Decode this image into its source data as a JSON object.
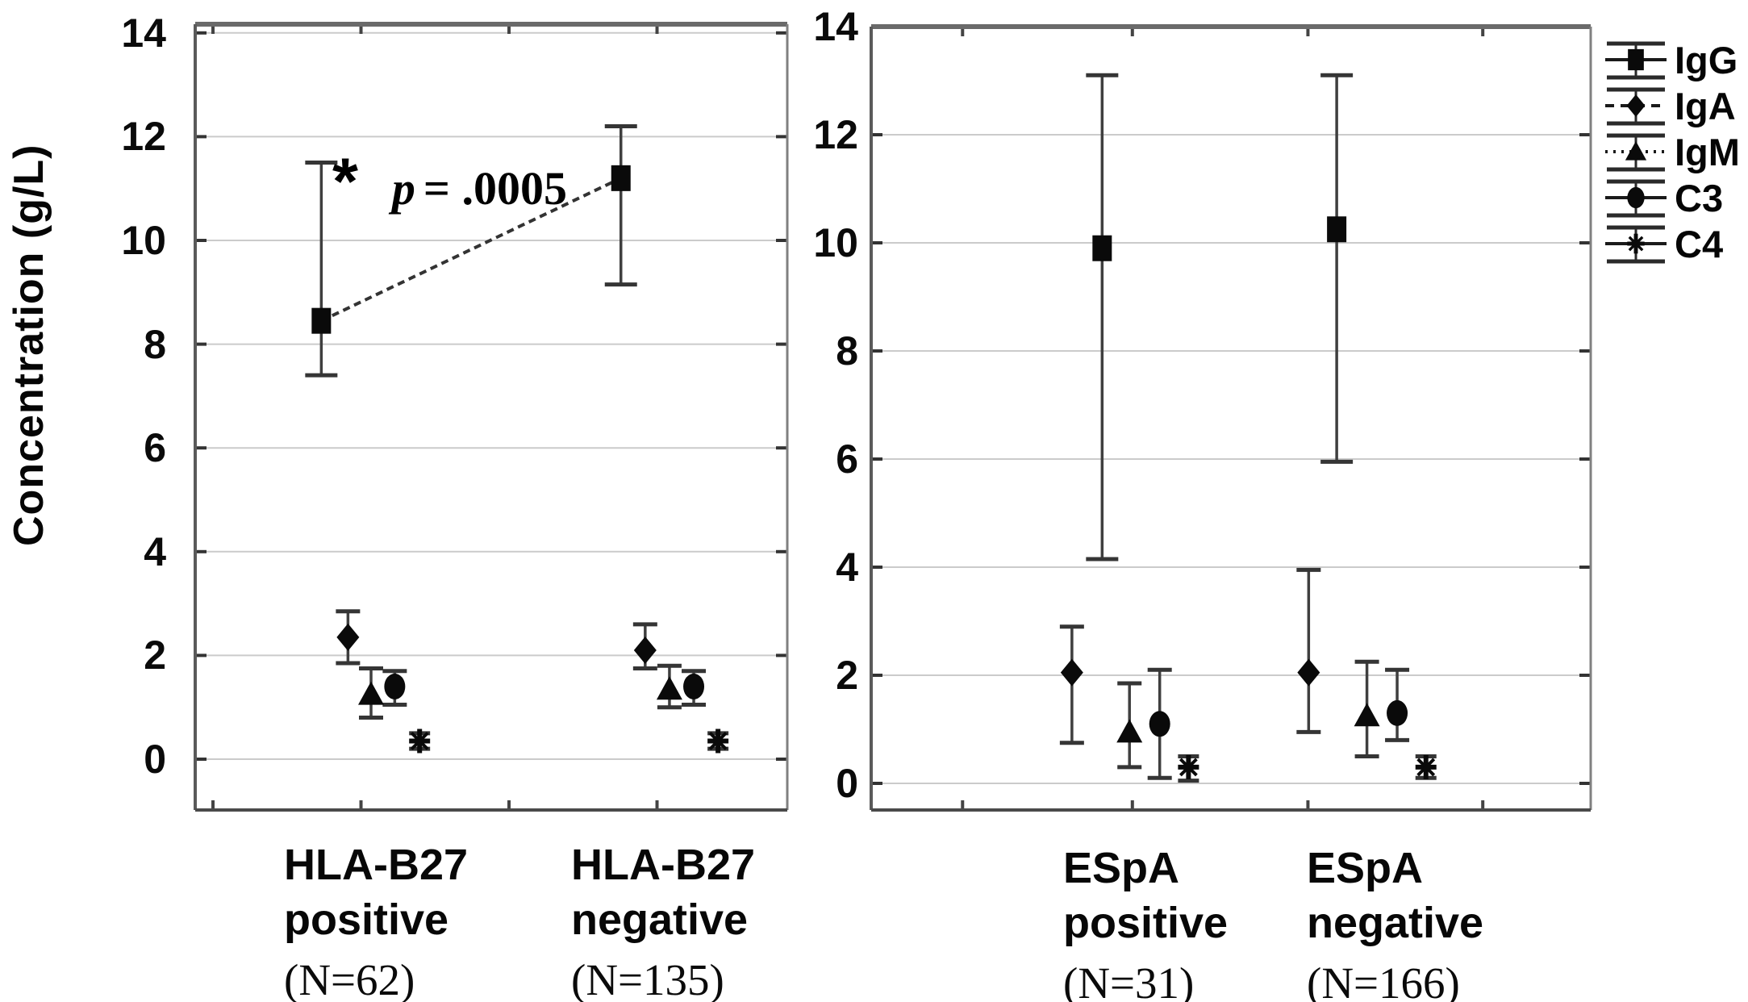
{
  "figure": {
    "background": "#ffffff",
    "ylabel": "Concentration (g/L)",
    "annotation": {
      "star": "*",
      "p_var": "p",
      "p_rest": "= .0005"
    }
  },
  "legend": {
    "items": [
      {
        "label": "IgG",
        "marker": "square",
        "line": "solid"
      },
      {
        "label": "IgA",
        "marker": "diamond",
        "line": "dashed"
      },
      {
        "label": "IgM",
        "marker": "triangle",
        "line": "dotted"
      },
      {
        "label": "C3",
        "marker": "circle",
        "line": "solid"
      },
      {
        "label": "C4",
        "marker": "asterisk",
        "line": "solid"
      }
    ]
  },
  "colors": {
    "marker": "#0a0a0a",
    "error_bar": "#3f3f3f",
    "gridline": "#cbcbcb",
    "axis_border": "#5a5a5a",
    "trend_line": "#333333"
  },
  "chart_data": [
    {
      "type": "scatter",
      "panel": "left",
      "ylabel": "Concentration (g/L)",
      "ylim": [
        -1.0,
        14.6
      ],
      "yticks": [
        14,
        12,
        10,
        8,
        6,
        4,
        2,
        0
      ],
      "grid": true,
      "legend_position": "outside-right",
      "annotation": "* p = .0005 (IgG, HLA-B27 positive vs negative)",
      "groups": [
        {
          "label_lines": [
            "HLA-B27",
            "positive",
            "(N=62)"
          ],
          "n": 62,
          "points": [
            {
              "series": "IgG",
              "x_frac": 0.213,
              "mean": 8.45,
              "lo": 7.4,
              "hi": 11.5
            },
            {
              "series": "IgA",
              "x_frac": 0.258,
              "mean": 2.35,
              "lo": 1.85,
              "hi": 2.85
            },
            {
              "series": "IgM",
              "x_frac": 0.297,
              "mean": 1.25,
              "lo": 0.8,
              "hi": 1.75
            },
            {
              "series": "C3",
              "x_frac": 0.337,
              "mean": 1.4,
              "lo": 1.05,
              "hi": 1.7
            },
            {
              "series": "C4",
              "x_frac": 0.379,
              "mean": 0.35,
              "lo": 0.2,
              "hi": 0.5
            }
          ]
        },
        {
          "label_lines": [
            "HLA-B27",
            "negative",
            "(N=135)"
          ],
          "n": 135,
          "points": [
            {
              "series": "IgG",
              "x_frac": 0.719,
              "mean": 11.2,
              "lo": 9.15,
              "hi": 12.2
            },
            {
              "series": "IgA",
              "x_frac": 0.76,
              "mean": 2.1,
              "lo": 1.75,
              "hi": 2.6
            },
            {
              "series": "IgM",
              "x_frac": 0.801,
              "mean": 1.35,
              "lo": 1.0,
              "hi": 1.8
            },
            {
              "series": "C3",
              "x_frac": 0.842,
              "mean": 1.4,
              "lo": 1.05,
              "hi": 1.7
            },
            {
              "series": "C4",
              "x_frac": 0.883,
              "mean": 0.35,
              "lo": 0.2,
              "hi": 0.5
            }
          ]
        }
      ],
      "significance_line": {
        "series": "IgG",
        "from_group": 0,
        "to_group": 1
      }
    },
    {
      "type": "scatter",
      "panel": "right",
      "ylim": [
        -0.5,
        14.0
      ],
      "yticks": [
        14,
        12,
        10,
        8,
        6,
        4,
        2,
        0
      ],
      "grid": true,
      "groups": [
        {
          "label_lines": [
            "ESpA",
            "positive",
            "(N=31)"
          ],
          "n": 31,
          "points": [
            {
              "series": "IgA",
              "x_frac": 0.279,
              "mean": 2.05,
              "lo": 0.75,
              "hi": 2.9
            },
            {
              "series": "IgG",
              "x_frac": 0.321,
              "mean": 9.9,
              "lo": 4.15,
              "hi": 13.1
            },
            {
              "series": "IgM",
              "x_frac": 0.359,
              "mean": 0.95,
              "lo": 0.3,
              "hi": 1.85
            },
            {
              "series": "C3",
              "x_frac": 0.401,
              "mean": 1.1,
              "lo": 0.1,
              "hi": 2.1
            },
            {
              "series": "C4",
              "x_frac": 0.441,
              "mean": 0.3,
              "lo": 0.05,
              "hi": 0.5
            }
          ]
        },
        {
          "label_lines": [
            "ESpA",
            "negative",
            "(N=166)"
          ],
          "n": 166,
          "points": [
            {
              "series": "IgA",
              "x_frac": 0.608,
              "mean": 2.05,
              "lo": 0.95,
              "hi": 3.95
            },
            {
              "series": "IgG",
              "x_frac": 0.647,
              "mean": 10.25,
              "lo": 5.95,
              "hi": 13.1
            },
            {
              "series": "IgM",
              "x_frac": 0.689,
              "mean": 1.25,
              "lo": 0.5,
              "hi": 2.25
            },
            {
              "series": "C3",
              "x_frac": 0.731,
              "mean": 1.3,
              "lo": 0.8,
              "hi": 2.1
            },
            {
              "series": "C4",
              "x_frac": 0.771,
              "mean": 0.3,
              "lo": 0.1,
              "hi": 0.5
            }
          ]
        }
      ]
    }
  ]
}
